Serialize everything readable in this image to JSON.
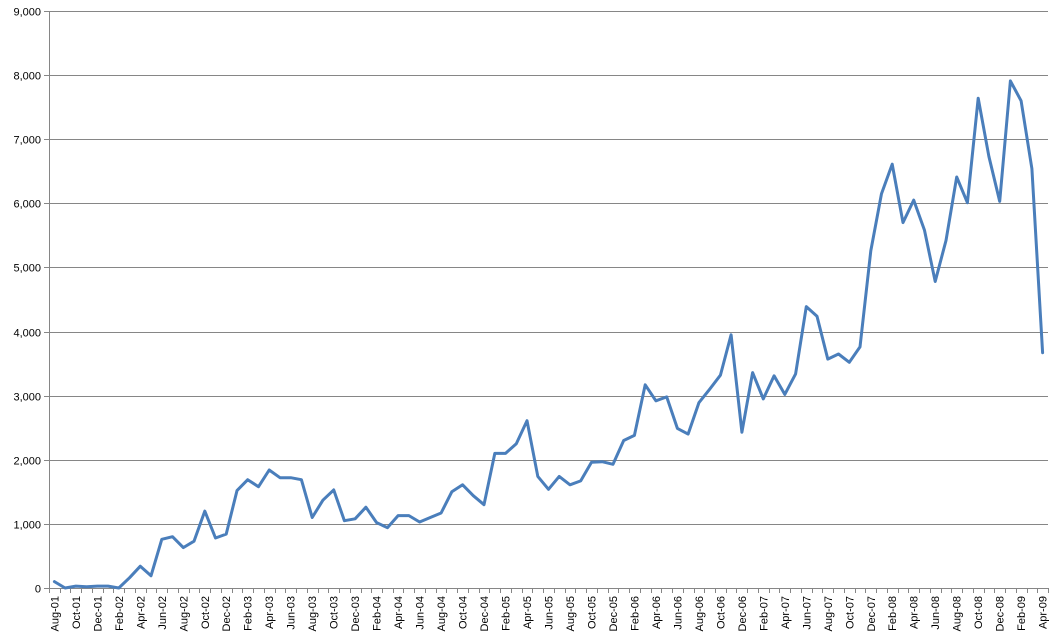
{
  "chart_data": {
    "type": "line",
    "title": "",
    "xlabel": "",
    "ylabel": "",
    "ylim": [
      0,
      9000
    ],
    "y_ticks": [
      0,
      1000,
      2000,
      3000,
      4000,
      5000,
      6000,
      7000,
      8000,
      9000
    ],
    "y_tick_labels": [
      "0",
      "1,000",
      "2,000",
      "3,000",
      "4,000",
      "5,000",
      "6,000",
      "7,000",
      "8,000",
      "9,000"
    ],
    "grid": "horizontal",
    "legend": "none",
    "line_color": "#4A7EBB",
    "categories": [
      "Aug-01",
      "Sep-01",
      "Oct-01",
      "Nov-01",
      "Dec-01",
      "Jan-02",
      "Feb-02",
      "Mar-02",
      "Apr-02",
      "May-02",
      "Jun-02",
      "Jul-02",
      "Aug-02",
      "Sep-02",
      "Oct-02",
      "Nov-02",
      "Dec-02",
      "Jan-03",
      "Feb-03",
      "Mar-03",
      "Apr-03",
      "May-03",
      "Jun-03",
      "Jul-03",
      "Aug-03",
      "Sep-03",
      "Oct-03",
      "Nov-03",
      "Dec-03",
      "Jan-04",
      "Feb-04",
      "Mar-04",
      "Apr-04",
      "May-04",
      "Jun-04",
      "Jul-04",
      "Aug-04",
      "Sep-04",
      "Oct-04",
      "Nov-04",
      "Dec-04",
      "Jan-05",
      "Feb-05",
      "Mar-05",
      "Apr-05",
      "May-05",
      "Jun-05",
      "Jul-05",
      "Aug-05",
      "Sep-05",
      "Oct-05",
      "Nov-05",
      "Dec-05",
      "Jan-06",
      "Feb-06",
      "Mar-06",
      "Apr-06",
      "May-06",
      "Jun-06",
      "Jul-06",
      "Aug-06",
      "Sep-06",
      "Oct-06",
      "Nov-06",
      "Dec-06",
      "Jan-07",
      "Feb-07",
      "Mar-07",
      "Apr-07",
      "May-07",
      "Jun-07",
      "Jul-07",
      "Aug-07",
      "Sep-07",
      "Oct-07",
      "Nov-07",
      "Dec-07",
      "Jan-08",
      "Feb-08",
      "Mar-08",
      "Apr-08",
      "May-08",
      "Jun-08",
      "Jul-08",
      "Aug-08",
      "Sep-08",
      "Oct-08",
      "Nov-08",
      "Dec-08",
      "Jan-09",
      "Feb-09",
      "Mar-09",
      "Apr-09"
    ],
    "x_tick_labels_shown": [
      "Aug-01",
      "Oct-01",
      "Dec-01",
      "Feb-02",
      "Apr-02",
      "Jun-02",
      "Aug-02",
      "Oct-02",
      "Dec-02",
      "Feb-03",
      "Apr-03",
      "Jun-03",
      "Aug-03",
      "Oct-03",
      "Dec-03",
      "Feb-04",
      "Apr-04",
      "Jun-04",
      "Aug-04",
      "Oct-04",
      "Dec-04",
      "Feb-05",
      "Apr-05",
      "Jun-05",
      "Aug-05",
      "Oct-05",
      "Dec-05",
      "Feb-06",
      "Apr-06",
      "Jun-06",
      "Aug-06",
      "Oct-06",
      "Dec-06",
      "Feb-07",
      "Apr-07",
      "Jun-07",
      "Aug-07",
      "Oct-07",
      "Dec-07",
      "Feb-08",
      "Apr-08",
      "Jun-08",
      "Aug-08",
      "Oct-08",
      "Dec-08",
      "Feb-09",
      "Apr-09"
    ],
    "series": [
      {
        "values": [
          100,
          0,
          30,
          20,
          30,
          30,
          0,
          160,
          340,
          190,
          760,
          800,
          630,
          730,
          1200,
          780,
          840,
          1520,
          1690,
          1580,
          1840,
          1720,
          1720,
          1690,
          1100,
          1370,
          1530,
          1050,
          1080,
          1260,
          1020,
          940,
          1130,
          1130,
          1030,
          1100,
          1170,
          1500,
          1610,
          1440,
          1300,
          2100,
          2100,
          2250,
          2610,
          1740,
          1540,
          1740,
          1610,
          1670,
          1960,
          1970,
          1930,
          2300,
          2380,
          3170,
          2920,
          2980,
          2490,
          2400,
          2890,
          3100,
          3320,
          3950,
          2430,
          3360,
          2950,
          3310,
          3020,
          3340,
          4390,
          4240,
          3570,
          3650,
          3520,
          3760,
          5260,
          6150,
          6610,
          5700,
          6050,
          5580,
          4780,
          5420,
          6410,
          6010,
          7640,
          6730,
          6030,
          7910,
          7600,
          6540,
          3670
        ]
      }
    ]
  }
}
